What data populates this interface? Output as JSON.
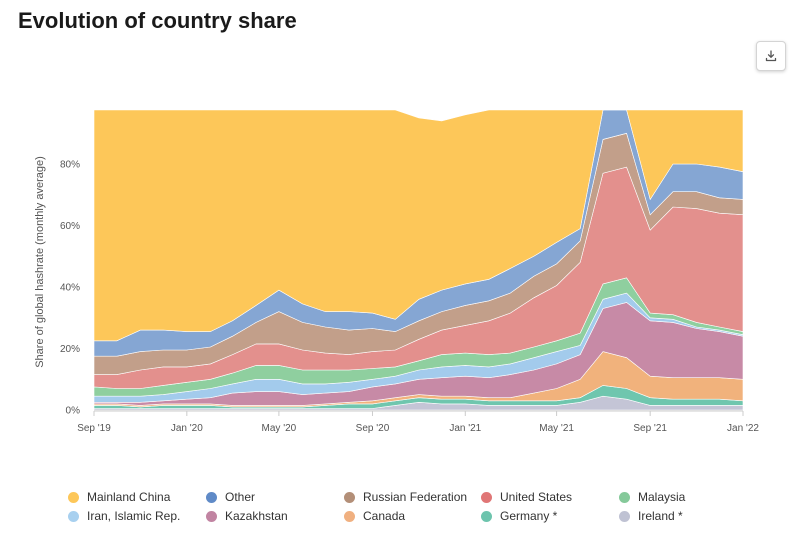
{
  "page": {
    "title": "Evolution of country share"
  },
  "toolbar": {
    "download_icon": "download-icon"
  },
  "chart_data": {
    "type": "area",
    "stacked": true,
    "ylabel": "Share of global hashrate (monthly average)",
    "ylim": [
      0,
      100
    ],
    "yticks": [
      0,
      20,
      40,
      60,
      80
    ],
    "ytick_labels": [
      "0%",
      "20%",
      "40%",
      "60%",
      "80%"
    ],
    "xlim": [
      "2019-09-01",
      "2022-01-01"
    ],
    "xticks": [
      "2019-09-01",
      "2020-01-01",
      "2020-05-01",
      "2020-09-01",
      "2021-01-01",
      "2021-05-01",
      "2021-09-01",
      "2022-01-01"
    ],
    "xtick_labels": [
      "Sep '19",
      "Jan '20",
      "May '20",
      "Sep '20",
      "Jan '21",
      "May '21",
      "Sep '21",
      "Jan '22"
    ],
    "grid": true,
    "legend_position": "bottom",
    "x": [
      "2019-09-01",
      "2019-10-01",
      "2019-11-01",
      "2019-12-01",
      "2020-01-01",
      "2020-02-01",
      "2020-03-01",
      "2020-04-01",
      "2020-05-01",
      "2020-06-01",
      "2020-07-01",
      "2020-08-01",
      "2020-09-01",
      "2020-10-01",
      "2020-11-01",
      "2020-12-01",
      "2021-01-01",
      "2021-02-01",
      "2021-03-01",
      "2021-04-01",
      "2021-05-01",
      "2021-06-01",
      "2021-07-01",
      "2021-08-01",
      "2021-09-01",
      "2021-10-01",
      "2021-11-01",
      "2021-12-01",
      "2022-01-01"
    ],
    "series": [
      {
        "name": "Ireland *",
        "color": "#c4c5d6",
        "values": [
          0.5,
          0.5,
          0.5,
          0.5,
          0.5,
          0.5,
          0.5,
          0.5,
          0.5,
          0.5,
          0.5,
          0.5,
          0.5,
          1.5,
          2.5,
          2,
          2,
          1.5,
          1.5,
          1.5,
          1.5,
          2.5,
          4.5,
          3.5,
          1.5,
          1.5,
          1.5,
          1.5,
          1.5
        ]
      },
      {
        "name": "Germany *",
        "color": "#6fc6ae",
        "values": [
          1,
          1,
          0.5,
          1,
          1,
          1,
          0.5,
          0.5,
          0.5,
          0.5,
          1,
          1.5,
          1.5,
          1.5,
          1.5,
          1.5,
          1.5,
          1.5,
          1.5,
          1.5,
          1.5,
          1.5,
          3.5,
          3.5,
          2.5,
          2,
          2,
          2,
          1.5
        ]
      },
      {
        "name": "Canada",
        "color": "#f1b27c",
        "values": [
          0.5,
          0.5,
          0.5,
          0.5,
          0.5,
          0.5,
          0.5,
          0.5,
          0.5,
          0.5,
          0.5,
          0.5,
          1,
          1,
          1,
          1,
          1,
          1,
          1,
          2.5,
          4,
          6,
          11,
          10,
          7,
          7,
          7,
          7,
          7
        ]
      },
      {
        "name": "Kazakhstan",
        "color": "#c78aa6",
        "values": [
          0.5,
          0.5,
          1,
          1,
          1.5,
          2,
          4,
          4.5,
          4.5,
          3.5,
          3.5,
          3.5,
          4.5,
          4.5,
          5,
          6,
          6.5,
          6.5,
          7.5,
          7.5,
          8,
          8,
          14,
          18,
          18,
          18,
          16,
          15,
          14
        ]
      },
      {
        "name": "Iran, Islamic Rep.",
        "color": "#a3cbec",
        "values": [
          2,
          2,
          2,
          2,
          2.5,
          3,
          3,
          4,
          4,
          3.5,
          3,
          3,
          2.5,
          2.5,
          3,
          3.5,
          3.5,
          3.5,
          3.5,
          4,
          4,
          3,
          3,
          3,
          1,
          1,
          0.5,
          0.5,
          0.5
        ]
      },
      {
        "name": "Malaysia",
        "color": "#8fcf9f",
        "values": [
          3,
          2.5,
          2.5,
          3,
          3,
          3,
          3.5,
          4.5,
          4.5,
          4.5,
          4.5,
          4,
          3.5,
          3,
          3,
          4,
          4,
          4,
          3.5,
          3.5,
          3.5,
          4,
          5,
          5,
          1.5,
          1.5,
          1.5,
          1,
          1
        ]
      },
      {
        "name": "United States",
        "color": "#e3908d",
        "values": [
          4,
          4.5,
          6,
          6,
          5,
          5,
          6,
          7,
          7,
          6.5,
          5.5,
          5,
          5.5,
          5.5,
          7,
          8,
          9,
          11,
          13,
          16,
          18,
          23,
          36,
          36,
          27,
          35,
          37,
          37,
          38
        ]
      },
      {
        "name": "Russian Federation",
        "color": "#c29f8a",
        "values": [
          6,
          6,
          6,
          5.5,
          5.5,
          5.5,
          6,
          7,
          10.5,
          9,
          8.5,
          8,
          7.5,
          6,
          6,
          6,
          6.5,
          6.5,
          6.5,
          7,
          7,
          7,
          11,
          11,
          5,
          5,
          5.5,
          5,
          5
        ]
      },
      {
        "name": "Other",
        "color": "#85a6d3",
        "values": [
          5,
          5,
          7,
          6.5,
          6,
          5,
          5,
          5.5,
          7,
          6,
          5,
          6,
          5,
          4,
          7,
          7,
          7,
          7,
          8,
          6.5,
          7,
          4,
          15,
          11,
          5,
          9,
          9,
          10,
          9
        ]
      },
      {
        "name": "Mainland China",
        "color": "#fdc759",
        "values": [
          77,
          76.5,
          74,
          74,
          74.5,
          74.5,
          71,
          66.5,
          61,
          65,
          67,
          67,
          68.5,
          69.5,
          59,
          55,
          55,
          57,
          54,
          50,
          45.5,
          41,
          -3,
          -1,
          31,
          19,
          20,
          21,
          23
        ]
      }
    ]
  },
  "legend": {
    "items": [
      {
        "label": "Mainland China",
        "color": "#fdc759"
      },
      {
        "label": "Other",
        "color": "#5f8ac7"
      },
      {
        "label": "Russian Federation",
        "color": "#b38f78"
      },
      {
        "label": "United States",
        "color": "#e07676"
      },
      {
        "label": "Malaysia",
        "color": "#85c99a"
      },
      {
        "label": "Iran, Islamic Rep.",
        "color": "#a8d0ef"
      },
      {
        "label": "Kazakhstan",
        "color": "#c184a2"
      },
      {
        "label": "Canada",
        "color": "#f0b080"
      },
      {
        "label": "Germany *",
        "color": "#6dc4ad"
      },
      {
        "label": "Ireland *",
        "color": "#bfc2d3"
      }
    ]
  }
}
